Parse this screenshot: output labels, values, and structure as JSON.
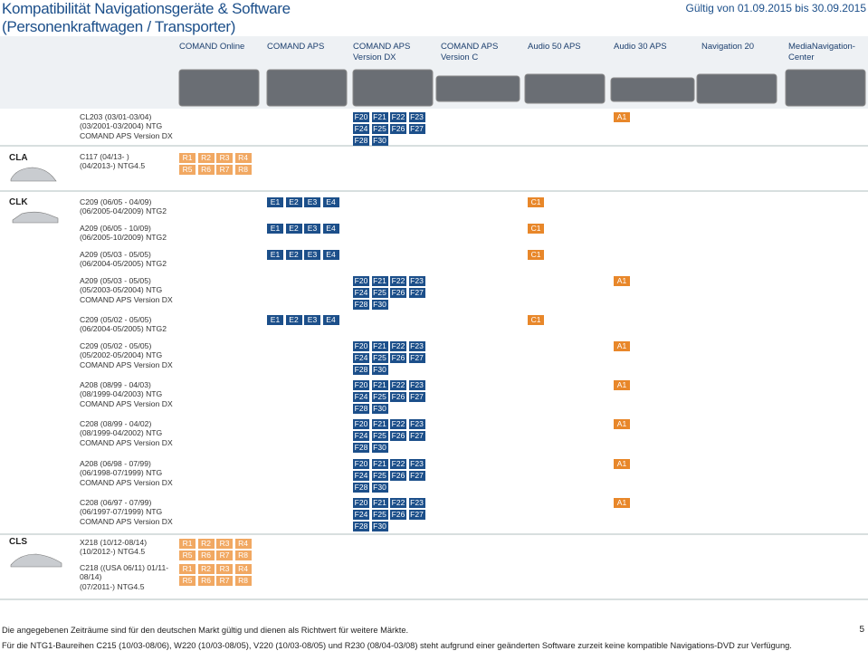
{
  "header": {
    "title_lines": [
      "Kompatibilität Navigationsgeräte & Software",
      "(Personenkraftwagen / Transporter)"
    ],
    "validity": "Gültig von 01.09.2015 bis 30.09.2015"
  },
  "columns": [
    "COMAND Online",
    "COMAND APS",
    "COMAND APS Version DX",
    "COMAND APS Version C",
    "Audio 50 APS",
    "Audio 30 APS",
    "Navigation 20",
    "MediaNavigation-Center"
  ],
  "rows": [
    {
      "lines": [
        "CL203 (03/01-03/04)",
        "(03/2001-03/2004) NTG",
        "COMAND APS Version DX"
      ],
      "cells": [
        null,
        null,
        {
          "color": "#1c4f8a",
          "codes": [
            [
              "F20",
              "F21",
              "F22",
              "F23"
            ],
            [
              "F24",
              "F25",
              "F26",
              "F27"
            ],
            [
              "F28",
              "F30"
            ]
          ]
        },
        null,
        null,
        {
          "color": "#e8872a",
          "codes": [
            [
              "A1"
            ]
          ]
        },
        null,
        null
      ]
    },
    {
      "model": "CLA",
      "lines": [
        "C117 (04/13- )",
        "(04/2013-) NTG4.5"
      ],
      "cells": [
        {
          "color": "#f1a862",
          "codes": [
            [
              "R1",
              "R2",
              "R3",
              "R4"
            ],
            [
              "R5",
              "R6",
              "R7",
              "R8"
            ]
          ]
        },
        null,
        null,
        null,
        null,
        null,
        null,
        null
      ]
    },
    {
      "model": "CLK",
      "lines": [
        "C209 (06/05 - 04/09)",
        "(06/2005-04/2009) NTG2"
      ],
      "cells": [
        null,
        {
          "color": "#1c4f8a",
          "codes": [
            [
              "E1",
              "E2",
              "E3",
              "E4"
            ]
          ]
        },
        null,
        null,
        {
          "color": "#e8872a",
          "codes": [
            [
              "C1"
            ]
          ]
        },
        null,
        null,
        null
      ]
    },
    {
      "lines": [
        "A209 (06/05 - 10/09)",
        "(06/2005-10/2009) NTG2"
      ],
      "cells": [
        null,
        {
          "color": "#1c4f8a",
          "codes": [
            [
              "E1",
              "E2",
              "E3",
              "E4"
            ]
          ]
        },
        null,
        null,
        {
          "color": "#e8872a",
          "codes": [
            [
              "C1"
            ]
          ]
        },
        null,
        null,
        null
      ]
    },
    {
      "lines": [
        "A209 (05/03 - 05/05)",
        "(06/2004-05/2005) NTG2"
      ],
      "cells": [
        null,
        {
          "color": "#1c4f8a",
          "codes": [
            [
              "E1",
              "E2",
              "E3",
              "E4"
            ]
          ]
        },
        null,
        null,
        {
          "color": "#e8872a",
          "codes": [
            [
              "C1"
            ]
          ]
        },
        null,
        null,
        null
      ]
    },
    {
      "lines": [
        "A209 (05/03 - 05/05)",
        "(05/2003-05/2004) NTG",
        "COMAND APS Version DX"
      ],
      "cells": [
        null,
        null,
        {
          "color": "#1c4f8a",
          "codes": [
            [
              "F20",
              "F21",
              "F22",
              "F23"
            ],
            [
              "F24",
              "F25",
              "F26",
              "F27"
            ],
            [
              "F28",
              "F30"
            ]
          ]
        },
        null,
        null,
        {
          "color": "#e8872a",
          "codes": [
            [
              "A1"
            ]
          ]
        },
        null,
        null
      ]
    },
    {
      "lines": [
        "C209 (05/02 - 05/05)",
        "(06/2004-05/2005) NTG2"
      ],
      "cells": [
        null,
        {
          "color": "#1c4f8a",
          "codes": [
            [
              "E1",
              "E2",
              "E3",
              "E4"
            ]
          ]
        },
        null,
        null,
        {
          "color": "#e8872a",
          "codes": [
            [
              "C1"
            ]
          ]
        },
        null,
        null,
        null
      ]
    },
    {
      "lines": [
        "C209 (05/02 - 05/05)",
        "(05/2002-05/2004) NTG",
        "COMAND APS Version DX"
      ],
      "cells": [
        null,
        null,
        {
          "color": "#1c4f8a",
          "codes": [
            [
              "F20",
              "F21",
              "F22",
              "F23"
            ],
            [
              "F24",
              "F25",
              "F26",
              "F27"
            ],
            [
              "F28",
              "F30"
            ]
          ]
        },
        null,
        null,
        {
          "color": "#e8872a",
          "codes": [
            [
              "A1"
            ]
          ]
        },
        null,
        null
      ]
    },
    {
      "lines": [
        "A208 (08/99 - 04/03)",
        "(08/1999-04/2003) NTG",
        "COMAND APS Version DX"
      ],
      "cells": [
        null,
        null,
        {
          "color": "#1c4f8a",
          "codes": [
            [
              "F20",
              "F21",
              "F22",
              "F23"
            ],
            [
              "F24",
              "F25",
              "F26",
              "F27"
            ],
            [
              "F28",
              "F30"
            ]
          ]
        },
        null,
        null,
        {
          "color": "#e8872a",
          "codes": [
            [
              "A1"
            ]
          ]
        },
        null,
        null
      ]
    },
    {
      "lines": [
        "C208 (08/99 - 04/02)",
        "(08/1999-04/2002) NTG",
        "COMAND APS Version DX"
      ],
      "cells": [
        null,
        null,
        {
          "color": "#1c4f8a",
          "codes": [
            [
              "F20",
              "F21",
              "F22",
              "F23"
            ],
            [
              "F24",
              "F25",
              "F26",
              "F27"
            ],
            [
              "F28",
              "F30"
            ]
          ]
        },
        null,
        null,
        {
          "color": "#e8872a",
          "codes": [
            [
              "A1"
            ]
          ]
        },
        null,
        null
      ]
    },
    {
      "lines": [
        "A208 (06/98 - 07/99)",
        "(06/1998-07/1999) NTG",
        "COMAND APS Version DX"
      ],
      "cells": [
        null,
        null,
        {
          "color": "#1c4f8a",
          "codes": [
            [
              "F20",
              "F21",
              "F22",
              "F23"
            ],
            [
              "F24",
              "F25",
              "F26",
              "F27"
            ],
            [
              "F28",
              "F30"
            ]
          ]
        },
        null,
        null,
        {
          "color": "#e8872a",
          "codes": [
            [
              "A1"
            ]
          ]
        },
        null,
        null
      ]
    },
    {
      "lines": [
        "C208 (06/97 - 07/99)",
        "(06/1997-07/1999) NTG",
        "COMAND APS Version DX"
      ],
      "cells": [
        null,
        null,
        {
          "color": "#1c4f8a",
          "codes": [
            [
              "F20",
              "F21",
              "F22",
              "F23"
            ],
            [
              "F24",
              "F25",
              "F26",
              "F27"
            ],
            [
              "F28",
              "F30"
            ]
          ]
        },
        null,
        null,
        {
          "color": "#e8872a",
          "codes": [
            [
              "A1"
            ]
          ]
        },
        null,
        null
      ]
    },
    {
      "model": "CLS",
      "lines": [
        "X218 (10/12-08/14)",
        "(10/2012-) NTG4.5"
      ],
      "cells": [
        {
          "color": "#f1a862",
          "codes": [
            [
              "R1",
              "R2",
              "R3",
              "R4"
            ],
            [
              "R5",
              "R6",
              "R7",
              "R8"
            ]
          ]
        },
        null,
        null,
        null,
        null,
        null,
        null,
        null
      ]
    },
    {
      "lines": [
        "C218 ((USA 06/11) 01/11-",
        "08/14)",
        "(07/2011-) NTG4.5"
      ],
      "cells": [
        {
          "color": "#f1a862",
          "codes": [
            [
              "R1",
              "R2",
              "R3",
              "R4"
            ],
            [
              "R5",
              "R6",
              "R7",
              "R8"
            ]
          ]
        },
        null,
        null,
        null,
        null,
        null,
        null,
        null
      ]
    }
  ],
  "footer": {
    "notes": [
      "Die angegebenen Zeiträume sind für den deutschen Markt gültig und dienen als Richtwert für weitere Märkte.",
      "Für die NTG1-Baureihen C215 (10/03-08/06), W220 (10/03-08/05), V220 (10/03-08/05) und R230 (08/04-03/08) steht aufgrund einer geänderten Software zurzeit keine kompatible Navigations-DVD zur Verfügung."
    ],
    "page": "5"
  }
}
